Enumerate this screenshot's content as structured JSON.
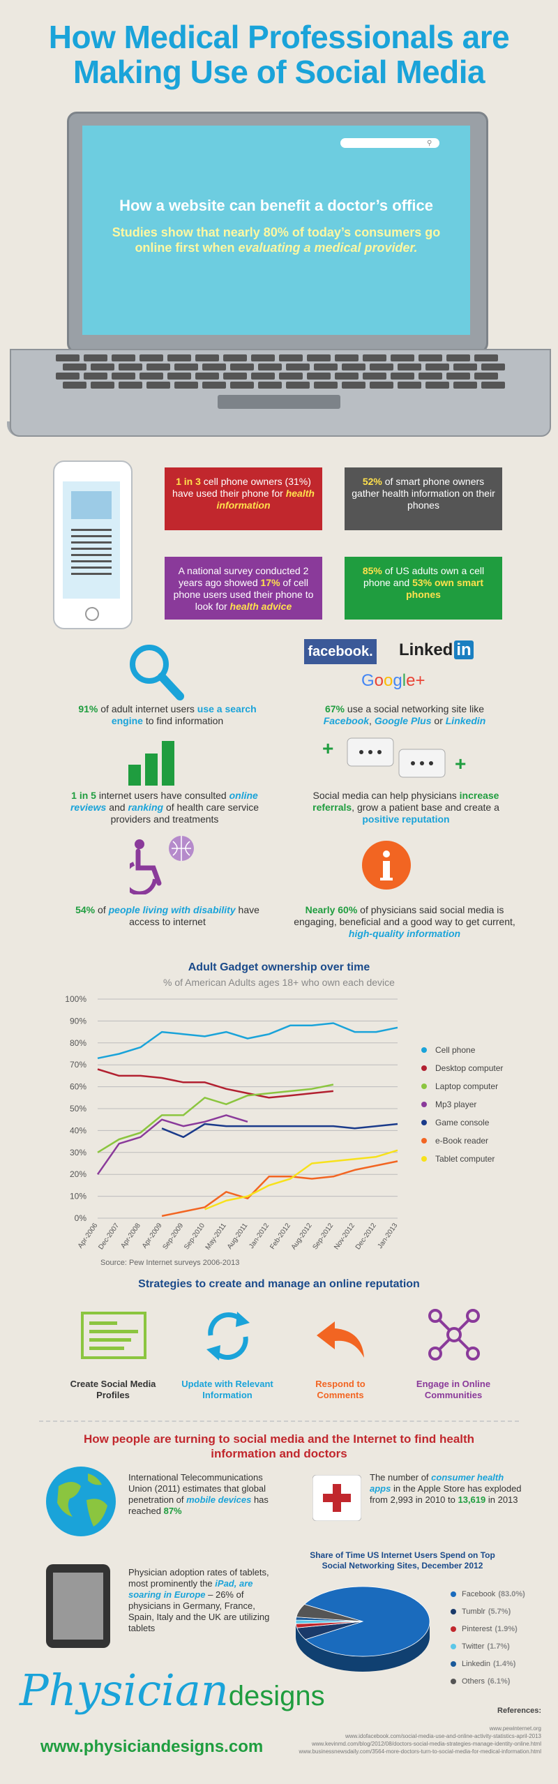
{
  "title": "How Medical Professionals are Making Use of Social Media",
  "laptop": {
    "heading": "How a website can benefit a doctor’s office",
    "text_pre": "Studies show that nearly 80% of today’s consumers go online first when ",
    "text_em": "evaluating a medical provider."
  },
  "phone_stats": {
    "red": {
      "hl": "1 in 3",
      "rest": " cell phone owners (31%) have used their phone for ",
      "em": "health information"
    },
    "gray": {
      "hl": "52%",
      "rest": " of smart phone owners gather health information on their phones"
    },
    "purple": {
      "pre": "A national survey conducted 2 years ago showed ",
      "hl": "17%",
      "rest": " of cell phone users used their phone to look for ",
      "em": "health advice"
    },
    "green": {
      "hl": "85%",
      "rest": " of US adults own a cell phone and ",
      "hl2": "53% own smart phones"
    }
  },
  "stats": {
    "search": {
      "hl": "91%",
      "mid": " of adult internet users ",
      "hl2": "use a search engine",
      "rest": " to find information"
    },
    "social": {
      "hl": "67%",
      "mid": " use a social networking site like ",
      "a": "Facebook",
      "sep1": ", ",
      "b": "Google Plus",
      "sep2": " or ",
      "c": "Linkedin"
    },
    "reviews": {
      "hl": "1 in 5",
      "mid": " internet users have consulted ",
      "em1": "online reviews",
      "and": " and ",
      "em2": "ranking",
      "rest": " of health care service providers and treatments"
    },
    "referrals": {
      "pre": "Social media can help physicians ",
      "hl": "increase referrals",
      "mid": ", grow a patient base and create a ",
      "hl2": "positive reputation"
    },
    "disability": {
      "hl": "54%",
      "mid": " of ",
      "em": "people living with disability",
      "rest": " have access to internet"
    },
    "physicians": {
      "hl": "Nearly 60%",
      "mid": " of physicians said social media is engaging, beneficial and a good way to get current, ",
      "em": "high-quality information"
    }
  },
  "logos": {
    "facebook": "facebook.",
    "linkedin": "Linked",
    "linkedin_in": "in",
    "google": "Google+"
  },
  "chart_data": {
    "type": "line",
    "title": "Adult Gadget ownership over time",
    "subtitle": "% of American Adults ages 18+ who own each device",
    "source": "Source: Pew Internet surveys 2006-2013",
    "x": [
      "Apr-2006",
      "Dec-2007",
      "Apr-2008",
      "Apr-2009",
      "Sep-2009",
      "Sep-2010",
      "May-2011",
      "Aug-2011",
      "Jan-2012",
      "Feb-2012",
      "Aug-2012",
      "Sep-2012",
      "Nov-2012",
      "Dec-2012",
      "Jan-2013"
    ],
    "y_ticks": [
      "0%",
      "10%",
      "20%",
      "30%",
      "40%",
      "50%",
      "60%",
      "70%",
      "80%",
      "90%",
      "100%"
    ],
    "ylim": [
      0,
      100
    ],
    "legend_position": "right",
    "series": [
      {
        "name": "Cell phone",
        "color": "#1aa3d9",
        "values": [
          73,
          75,
          78,
          85,
          84,
          83,
          85,
          82,
          84,
          88,
          88,
          89,
          85,
          85,
          87
        ]
      },
      {
        "name": "Desktop computer",
        "color": "#b22030",
        "values": [
          68,
          65,
          65,
          64,
          62,
          62,
          59,
          57,
          55,
          56,
          57,
          58,
          null,
          null,
          null
        ]
      },
      {
        "name": "Laptop computer",
        "color": "#8bc53f",
        "values": [
          30,
          36,
          39,
          47,
          47,
          55,
          52,
          56,
          57,
          58,
          59,
          61,
          null,
          null,
          null
        ]
      },
      {
        "name": "Mp3 player",
        "color": "#8a3a9a",
        "values": [
          20,
          34,
          37,
          45,
          42,
          44,
          47,
          44,
          null,
          null,
          null,
          null,
          null,
          null,
          null
        ]
      },
      {
        "name": "Game console",
        "color": "#1a3a8a",
        "values": [
          null,
          null,
          null,
          41,
          37,
          43,
          42,
          42,
          42,
          42,
          42,
          42,
          41,
          42,
          43
        ]
      },
      {
        "name": "e-Book reader",
        "color": "#f26522",
        "values": [
          null,
          null,
          null,
          1,
          3,
          5,
          12,
          9,
          19,
          19,
          18,
          19,
          22,
          24,
          26
        ]
      },
      {
        "name": "Tablet computer",
        "color": "#f7e11b",
        "values": [
          null,
          null,
          null,
          null,
          null,
          4,
          8,
          10,
          15,
          18,
          25,
          26,
          27,
          28,
          31
        ]
      }
    ]
  },
  "strategies": {
    "title": "Strategies to create and manage an online reputation",
    "items": [
      {
        "label": "Create Social Media Profiles",
        "color": "#8bc53f"
      },
      {
        "label": "Update with Relevant Information",
        "color": "#1aa3d9"
      },
      {
        "label": "Respond to Comments",
        "color": "#f26522"
      },
      {
        "label": "Engage in Online Communities",
        "color": "#8a3a9a"
      }
    ]
  },
  "turning": {
    "title": "How people are turning to social media and the Internet to find health information and doctors",
    "itu": {
      "pre": "International Telecommunications Union (2011) estimates that global penetration of ",
      "em": "mobile devices",
      "mid": " has reached ",
      "hl": "87%"
    },
    "apps": {
      "pre": "The number of ",
      "em": "consumer health apps",
      "mid": " in the Apple Store has exploded from 2,993 in 2010 to ",
      "hl": "13,619",
      "rest": " in 2013"
    },
    "tablets": {
      "pre": "Physician adoption rates of tablets, most prominently the ",
      "em1": "iPad, are soaring in Europe",
      "mid": " – 26% of physicians in Germany, France, Spain, Italy and the UK are utilizing tablets"
    }
  },
  "pie": {
    "title": "Share of Time US Internet Users Spend on Top Social Networking Sites, December 2012",
    "slices": [
      {
        "name": "Facebook",
        "pct": "(83.0%)",
        "value": 83.0,
        "color": "#1a6bbd"
      },
      {
        "name": "Tumblr",
        "pct": "(5.7%)",
        "value": 5.7,
        "color": "#1a3a6a"
      },
      {
        "name": "Pinterest",
        "pct": "(1.9%)",
        "value": 1.9,
        "color": "#c1272d"
      },
      {
        "name": "Twitter",
        "pct": "(1.7%)",
        "value": 1.7,
        "color": "#5bc7e8"
      },
      {
        "name": "Linkedin",
        "pct": "(1.4%)",
        "value": 1.4,
        "color": "#1a5a9a"
      },
      {
        "name": "Others",
        "pct": "(6.1%)",
        "value": 6.1,
        "color": "#555555"
      }
    ]
  },
  "footer": {
    "logo_a": "Physician",
    "logo_b": "designs",
    "url": "www.physiciandesigns.com",
    "refs_title": "References:",
    "refs": [
      "www.pewinternet.org",
      "www.idofacebook.com/social-media-use-and-online-activity-statistics-april-2013",
      "www.kevinmd.com/blog/2012/08/doctors-social-media-strategies-manage-identity-online.html",
      "www.businessnewsdaily.com/3564-more-doctors-turn-to-social-media-for-medical-information.html"
    ]
  }
}
